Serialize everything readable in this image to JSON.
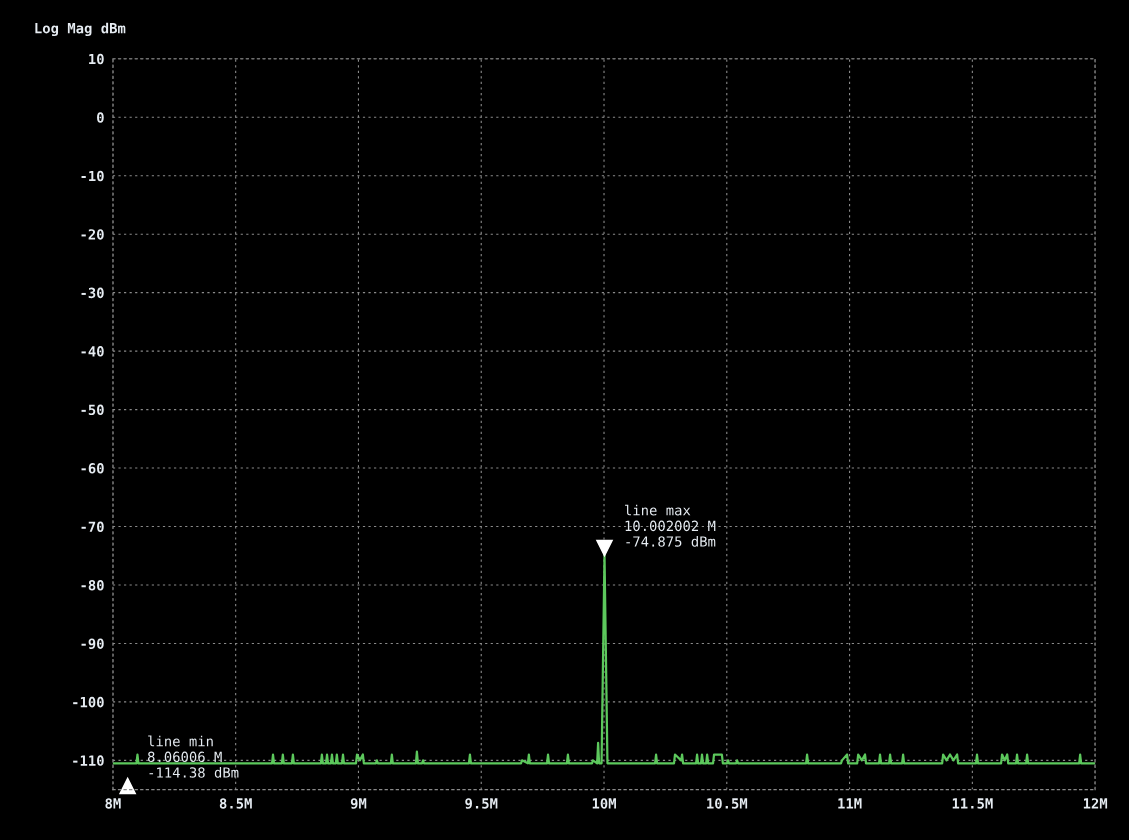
{
  "chart_data": {
    "type": "line",
    "title": "Log Mag dBm",
    "xlim": [
      8,
      12
    ],
    "xticks": [
      {
        "value": 8,
        "label": "8M"
      },
      {
        "value": 8.5,
        "label": "8.5M"
      },
      {
        "value": 9,
        "label": "9M"
      },
      {
        "value": 9.5,
        "label": "9.5M"
      },
      {
        "value": 10,
        "label": "10M"
      },
      {
        "value": 10.5,
        "label": "10.5M"
      },
      {
        "value": 11,
        "label": "11M"
      },
      {
        "value": 11.5,
        "label": "11.5M"
      },
      {
        "value": 12,
        "label": "12M"
      }
    ],
    "ylim": [
      -115,
      10
    ],
    "yticks": [
      10,
      0,
      -10,
      -20,
      -30,
      -40,
      -50,
      -60,
      -70,
      -80,
      -90,
      -100,
      -110
    ],
    "grid": true,
    "marker": "none",
    "line_style": "solid",
    "series": [
      {
        "color": "#5cc85c",
        "x": [
          8.0,
          8.096,
          8.1,
          8.104,
          8.648,
          8.652,
          8.656,
          8.688,
          8.692,
          8.696,
          8.729,
          8.733,
          8.737,
          8.847,
          8.851,
          8.855,
          8.868,
          8.872,
          8.876,
          8.888,
          8.892,
          8.896,
          8.908,
          8.912,
          8.916,
          8.933,
          8.937,
          8.941,
          8.99,
          8.994,
          9.006,
          9.018,
          9.022,
          9.071,
          9.075,
          9.079,
          9.132,
          9.136,
          9.14,
          9.234,
          9.238,
          9.242,
          9.259,
          9.263,
          9.267,
          9.45,
          9.454,
          9.458,
          9.662,
          9.666,
          9.69,
          9.694,
          9.698,
          9.768,
          9.772,
          9.776,
          9.849,
          9.853,
          9.857,
          9.951,
          9.955,
          9.972,
          9.976,
          9.98,
          9.99,
          10.002002,
          10.014,
          10.208,
          10.212,
          10.216,
          10.285,
          10.289,
          10.314,
          10.318,
          10.322,
          10.375,
          10.379,
          10.383,
          10.395,
          10.399,
          10.403,
          10.416,
          10.42,
          10.424,
          10.444,
          10.448,
          10.465,
          10.48,
          10.484,
          10.501,
          10.505,
          10.509,
          10.538,
          10.542,
          10.546,
          10.823,
          10.827,
          10.831,
          10.965,
          10.969,
          10.99,
          10.994,
          11.031,
          11.035,
          11.05,
          11.063,
          11.067,
          11.12,
          11.124,
          11.128,
          11.161,
          11.165,
          11.169,
          11.214,
          11.218,
          11.222,
          11.377,
          11.381,
          11.395,
          11.409,
          11.423,
          11.438,
          11.442,
          11.515,
          11.519,
          11.523,
          11.617,
          11.621,
          11.632,
          11.642,
          11.646,
          11.678,
          11.682,
          11.686,
          11.719,
          11.723,
          11.727,
          11.935,
          11.939,
          11.943,
          12.0
        ],
        "values": [
          -110.5,
          -110.5,
          -109,
          -110.5,
          -110.5,
          -109,
          -110.5,
          -110.5,
          -109,
          -110.5,
          -110.5,
          -109,
          -110.5,
          -110.5,
          -109,
          -110.5,
          -110.5,
          -109,
          -110.5,
          -110.5,
          -109,
          -110.5,
          -110.5,
          -109,
          -110.5,
          -110.5,
          -109,
          -110.5,
          -110.5,
          -109,
          -110,
          -109,
          -110.5,
          -110.5,
          -110,
          -110.5,
          -110.5,
          -109,
          -110.5,
          -110.5,
          -108.5,
          -110.5,
          -110.5,
          -110,
          -110.5,
          -110.5,
          -109,
          -110.5,
          -110.5,
          -110,
          -110.5,
          -109,
          -110.5,
          -110.5,
          -109,
          -110.5,
          -110.5,
          -109,
          -110.5,
          -110.5,
          -110,
          -110.5,
          -107,
          -110.5,
          -110.5,
          -74.875,
          -110.5,
          -110.5,
          -109,
          -110.5,
          -110.5,
          -109,
          -110,
          -109,
          -110.5,
          -110.5,
          -109,
          -110.5,
          -110.5,
          -109,
          -110.5,
          -110.5,
          -109,
          -110.5,
          -110.5,
          -109,
          -109,
          -109,
          -110.5,
          -110.5,
          -110,
          -110.5,
          -110.5,
          -110,
          -110.5,
          -110.5,
          -109,
          -110.5,
          -110.5,
          -110,
          -109,
          -110.5,
          -110.5,
          -109,
          -110,
          -109,
          -110.5,
          -110.5,
          -109,
          -110.5,
          -110.5,
          -109,
          -110.5,
          -110.5,
          -109,
          -110.5,
          -110.5,
          -109,
          -110,
          -109,
          -110,
          -109,
          -110.5,
          -110.5,
          -109,
          -110.5,
          -110.5,
          -109,
          -110,
          -109,
          -110.5,
          -110.5,
          -109,
          -110.5,
          -110.5,
          -109,
          -110.5,
          -110.5,
          -109,
          -110.5,
          -110.5
        ]
      }
    ],
    "annotations": [
      {
        "text": "line max\n10.002002 M\n-74.875 dBm",
        "x": 10.002002,
        "y": -74.875
      },
      {
        "text": "line min\n8.06006 M\n-114.38 dBm",
        "x": 8.06006,
        "y": -114.38
      }
    ]
  }
}
